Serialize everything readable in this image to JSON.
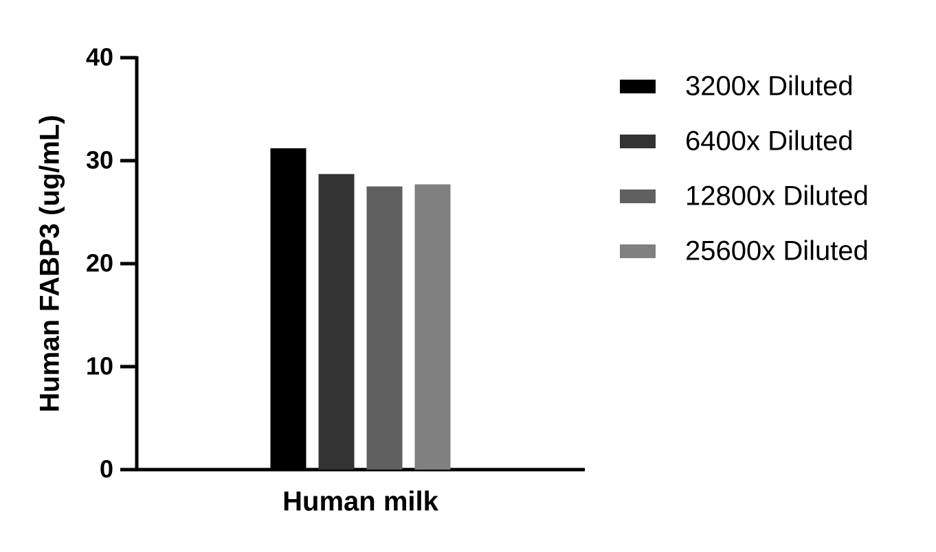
{
  "chart_data": {
    "type": "bar",
    "y_label": "Human FABP3 (ug/mL)",
    "categories": [
      "Human milk"
    ],
    "series": [
      {
        "name": "3200x Diluted",
        "color": "#000000",
        "values": [
          31.2
        ]
      },
      {
        "name": "6400x Diluted",
        "color": "#333333",
        "values": [
          28.7
        ]
      },
      {
        "name": "12800x Diluted",
        "color": "#606060",
        "values": [
          27.5
        ]
      },
      {
        "name": "25600x Diluted",
        "color": "#808080",
        "values": [
          27.7
        ]
      }
    ],
    "ylim": [
      0,
      40
    ],
    "yticks": [
      0,
      10,
      20,
      30,
      40
    ],
    "grid": false,
    "legend": "right"
  }
}
